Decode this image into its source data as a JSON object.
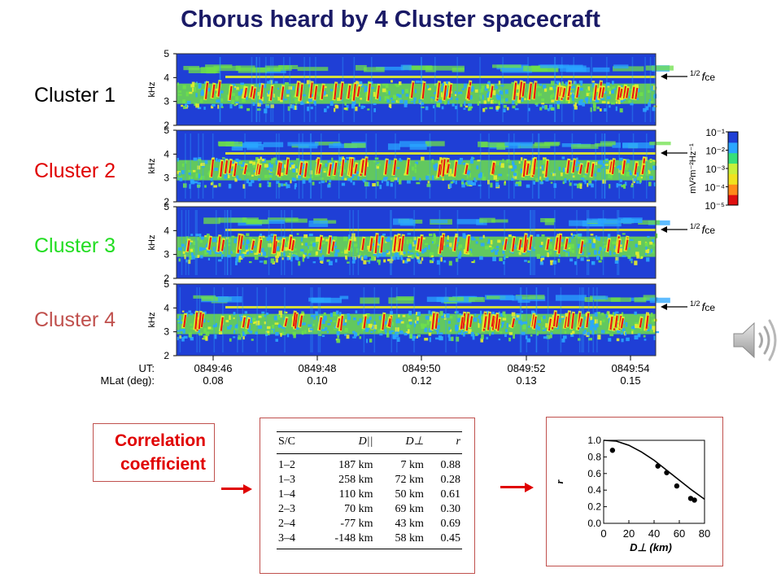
{
  "title": "Chorus  heard by 4 Cluster spacecraft",
  "spacecraft_labels": [
    {
      "text": "Cluster 1",
      "color": "#000000"
    },
    {
      "text": "Cluster 2",
      "color": "#e00000"
    },
    {
      "text": "Cluster 3",
      "color": "#22dd22"
    },
    {
      "text": "Cluster 4",
      "color": "#c0504d"
    }
  ],
  "spectrogram": {
    "panels": 4,
    "yaxis_label": "kHz",
    "yticks": [
      "5",
      "4",
      "3",
      "2"
    ],
    "time_row_label": "UT:",
    "mlat_row_label": "MLat (deg):",
    "time_ticks": [
      "0849:46",
      "0849:48",
      "0849:50",
      "0849:52",
      "0849:54"
    ],
    "mlat_ticks": [
      "0.08",
      "0.10",
      "0.12",
      "0.13",
      "0.15"
    ],
    "fce_label_prefix": "1/2",
    "fce_label_main": "f",
    "fce_label_sub": "ce",
    "fce_arrow_panels": [
      1,
      2,
      3,
      4
    ],
    "fce_label_panels": [
      1,
      3,
      4
    ],
    "colorbar": {
      "unit_label": "mV²m⁻²Hz⁻¹",
      "ticks": [
        "10⁻¹",
        "10⁻²",
        "10⁻³",
        "10⁻⁴",
        "10⁻⁵"
      ],
      "colors": [
        "#1f3fd6",
        "#2aa6ff",
        "#37e07a",
        "#c8f03a",
        "#f0e21f",
        "#ff8a1a",
        "#e01010"
      ]
    },
    "palette": {
      "background": "#1f3fd6",
      "cyan": "#2aa6ff",
      "green": "#6ee04a",
      "yellow": "#e8f02a",
      "red": "#e81010"
    }
  },
  "speaker_icon": "speaker-icon",
  "correlation_label": [
    "Correlation",
    "coefficient"
  ],
  "table": {
    "headers": [
      "S/C",
      "D||",
      "D⊥",
      "r"
    ],
    "rows": [
      [
        "1–2",
        "187 km",
        "7 km",
        "0.88"
      ],
      [
        "1–3",
        "258 km",
        "72 km",
        "0.28"
      ],
      [
        "1–4",
        "110 km",
        "50 km",
        "0.61"
      ],
      [
        "2–3",
        "70 km",
        "69 km",
        "0.30"
      ],
      [
        "2–4",
        "-77 km",
        "43 km",
        "0.69"
      ],
      [
        "3–4",
        "-148 km",
        "58 km",
        "0.45"
      ]
    ]
  },
  "chart_data": {
    "type": "scatter",
    "xlabel": "D⊥ (km)",
    "ylabel": "r",
    "xlim": [
      0,
      80
    ],
    "ylim": [
      0,
      1.0
    ],
    "xticks": [
      "0",
      "20",
      "40",
      "60",
      "80"
    ],
    "yticks": [
      "1.0",
      "0.8",
      "0.6",
      "0.4",
      "0.2",
      "0.0"
    ],
    "points": [
      {
        "x": 7,
        "y": 0.88
      },
      {
        "x": 43,
        "y": 0.69
      },
      {
        "x": 50,
        "y": 0.61
      },
      {
        "x": 58,
        "y": 0.45
      },
      {
        "x": 69,
        "y": 0.3
      },
      {
        "x": 72,
        "y": 0.28
      }
    ],
    "fit_curve": {
      "type": "gaussian",
      "x": [
        0,
        10,
        20,
        30,
        40,
        50,
        60,
        70,
        80
      ],
      "y": [
        1.0,
        0.99,
        0.94,
        0.86,
        0.76,
        0.64,
        0.52,
        0.4,
        0.29
      ]
    },
    "grid": false
  }
}
